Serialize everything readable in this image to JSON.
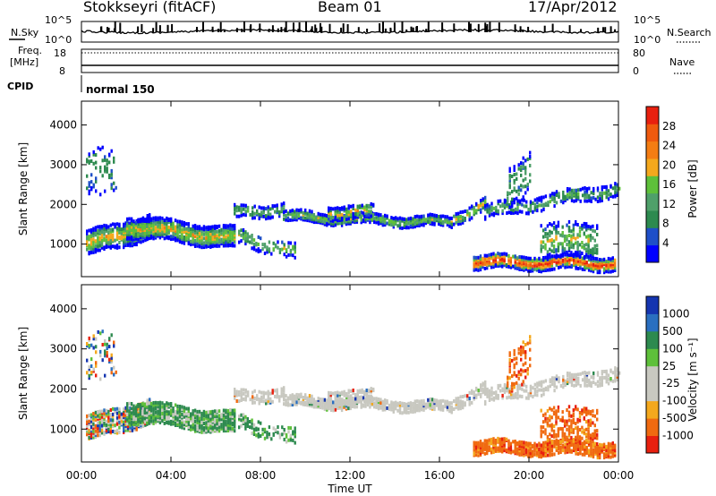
{
  "header": {
    "station": "Stokkseyri (fitACF)",
    "beam": "Beam 01",
    "date": "17/Apr/2012"
  },
  "top_panels": {
    "nsky_label": "N.Sky",
    "nsearch_label": "N.Search",
    "nsky_ticks": [
      "10^5",
      "10^0"
    ],
    "nsearch_ticks": [
      "10^5",
      "10^0"
    ],
    "freq_label": "Freq.",
    "freq_unit": "[MHz]",
    "freq_ticks": [
      "18",
      "8"
    ],
    "nave_label": "Nave",
    "nave_ticks": [
      "80",
      "0"
    ],
    "cpid_label": "CPID",
    "cpid_value": "normal 150"
  },
  "colors": {
    "power": [
      "#0000ff",
      "#1e4fc8",
      "#2d8a4f",
      "#4fa06a",
      "#5ec03a",
      "#f4a81d",
      "#f47d13",
      "#ef5a0e",
      "#e8200f"
    ],
    "velocity": [
      "#e8200f",
      "#f06a10",
      "#f4a81d",
      "#c8c8c0",
      "#c8c8c0",
      "#5ec03a",
      "#2d8a4f",
      "#2a6fc0",
      "#1535b0"
    ],
    "velocity_ground": "#c8c8c0"
  },
  "chart_data": [
    {
      "type": "heatmap",
      "name": "Power",
      "ylabel": "Slant Range [km]",
      "y_ticks": [
        1000,
        2000,
        3000,
        4000
      ],
      "ylim": [
        180,
        4600
      ],
      "colorbar_label": "Power [dB]",
      "colorbar_ticks": [
        "4",
        "8",
        "12",
        "16",
        "20",
        "24",
        "28"
      ],
      "colorbar_range": [
        0,
        30
      ]
    },
    {
      "type": "heatmap",
      "name": "Velocity",
      "ylabel": "Slant Range [km]",
      "y_ticks": [
        1000,
        2000,
        3000,
        4000
      ],
      "ylim": [
        180,
        4600
      ],
      "colorbar_label": "Velocity [m s⁻¹]",
      "colorbar_ticks": [
        "1000",
        "500",
        "100",
        "25",
        "-25",
        "-100",
        "-500",
        "-1000"
      ],
      "xlabel": "Time UT",
      "x_ticks": [
        "00:00",
        "04:00",
        "08:00",
        "12:00",
        "16:00",
        "20:00",
        "00:00"
      ],
      "xlim_hours": [
        0,
        24
      ]
    }
  ]
}
